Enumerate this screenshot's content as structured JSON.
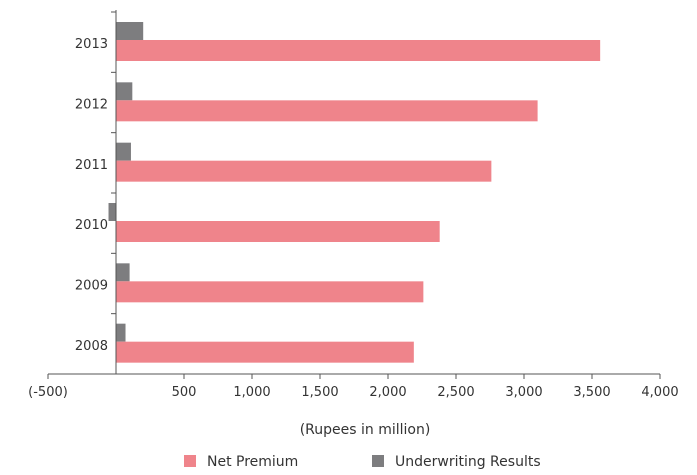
{
  "chart_data": {
    "type": "bar",
    "orientation": "horizontal",
    "categories": [
      "2013",
      "2012",
      "2011",
      "2010",
      "2009",
      "2008"
    ],
    "series": [
      {
        "name": "Net Premium",
        "color": "#ef848b",
        "values": [
          3560,
          3100,
          2760,
          2380,
          2260,
          2190
        ]
      },
      {
        "name": "Underwriting Results",
        "color": "#7d7d7f",
        "values": [
          200,
          120,
          110,
          -55,
          100,
          70
        ]
      }
    ],
    "x_ticks": [
      "(-500)",
      "500",
      "1,000",
      "1,500",
      "2,000",
      "2,500",
      "3,000",
      "3,500",
      "4,000"
    ],
    "x_tick_values": [
      -500,
      500,
      1000,
      1500,
      2000,
      2500,
      3000,
      3500,
      4000
    ],
    "xlim": [
      -500,
      4000
    ],
    "xlabel": "(Rupees in million)",
    "ylabel": "",
    "title": "",
    "grid": false,
    "legend_position": "bottom"
  }
}
